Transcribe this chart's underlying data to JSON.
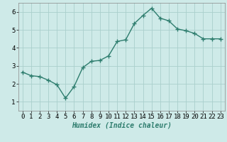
{
  "x": [
    0,
    1,
    2,
    3,
    4,
    5,
    6,
    7,
    8,
    9,
    10,
    11,
    12,
    13,
    14,
    15,
    16,
    17,
    18,
    19,
    20,
    21,
    22,
    23
  ],
  "y": [
    2.65,
    2.45,
    2.4,
    2.2,
    1.95,
    1.2,
    1.85,
    2.9,
    3.25,
    3.3,
    3.55,
    4.35,
    4.45,
    5.35,
    5.8,
    6.2,
    5.65,
    5.5,
    5.05,
    4.95,
    4.8,
    4.5,
    4.5,
    4.5
  ],
  "line_color": "#2e7d6e",
  "marker": "+",
  "markersize": 4,
  "linewidth": 1.0,
  "bg_color": "#ceeae8",
  "grid_color": "#aacfcc",
  "xlabel": "Humidex (Indice chaleur)",
  "xlim": [
    -0.5,
    23.5
  ],
  "ylim": [
    0.5,
    6.5
  ],
  "yticks": [
    1,
    2,
    3,
    4,
    5,
    6
  ],
  "xticks": [
    0,
    1,
    2,
    3,
    4,
    5,
    6,
    7,
    8,
    9,
    10,
    11,
    12,
    13,
    14,
    15,
    16,
    17,
    18,
    19,
    20,
    21,
    22,
    23
  ],
  "xlabel_fontsize": 7,
  "tick_fontsize": 6.5
}
